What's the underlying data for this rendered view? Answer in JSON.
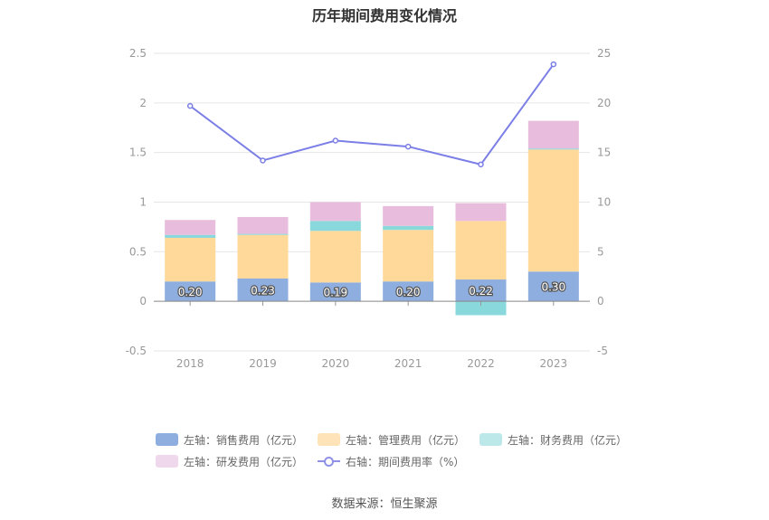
{
  "title": "历年期间费用变化情况",
  "source": "数据来源：恒生聚源",
  "chart_data": {
    "type": "bar",
    "stacked": true,
    "categories": [
      "2018",
      "2019",
      "2020",
      "2021",
      "2022",
      "2023"
    ],
    "left_axis": {
      "ylim": [
        -0.5,
        2.5
      ],
      "ticks": [
        "-0.5",
        "0",
        "0.5",
        "1",
        "1.5",
        "2",
        "2.5"
      ]
    },
    "right_axis": {
      "ylim": [
        -5,
        25
      ],
      "ticks": [
        "-5",
        "0",
        "5",
        "10",
        "15",
        "20",
        "25"
      ]
    },
    "series": [
      {
        "name": "左轴：销售费用（亿元）",
        "axis": "left",
        "color": "#8eaedf",
        "values": [
          0.2,
          0.23,
          0.19,
          0.2,
          0.22,
          0.3
        ],
        "labels": [
          "0.20",
          "0.23",
          "0.19",
          "0.20",
          "0.22",
          "0.30"
        ]
      },
      {
        "name": "左轴：管理费用（亿元）",
        "axis": "left",
        "color": "#ffd99a",
        "values": [
          0.44,
          0.44,
          0.52,
          0.52,
          0.59,
          1.23
        ]
      },
      {
        "name": "左轴：财务费用（亿元）",
        "axis": "left",
        "color": "#88d8dc",
        "values": [
          0.03,
          0.01,
          0.1,
          0.04,
          -0.14,
          0.01
        ]
      },
      {
        "name": "左轴：研发费用（亿元）",
        "axis": "left",
        "color": "#e8bcdc",
        "values": [
          0.15,
          0.17,
          0.19,
          0.2,
          0.18,
          0.28
        ]
      },
      {
        "name": "右轴：期间费用率（%）",
        "axis": "right",
        "type": "line",
        "color": "#7b7fe6",
        "values": [
          19.7,
          14.2,
          16.2,
          15.6,
          13.8,
          23.9
        ]
      }
    ],
    "legend": {
      "position": "bottom"
    },
    "grid": true
  }
}
